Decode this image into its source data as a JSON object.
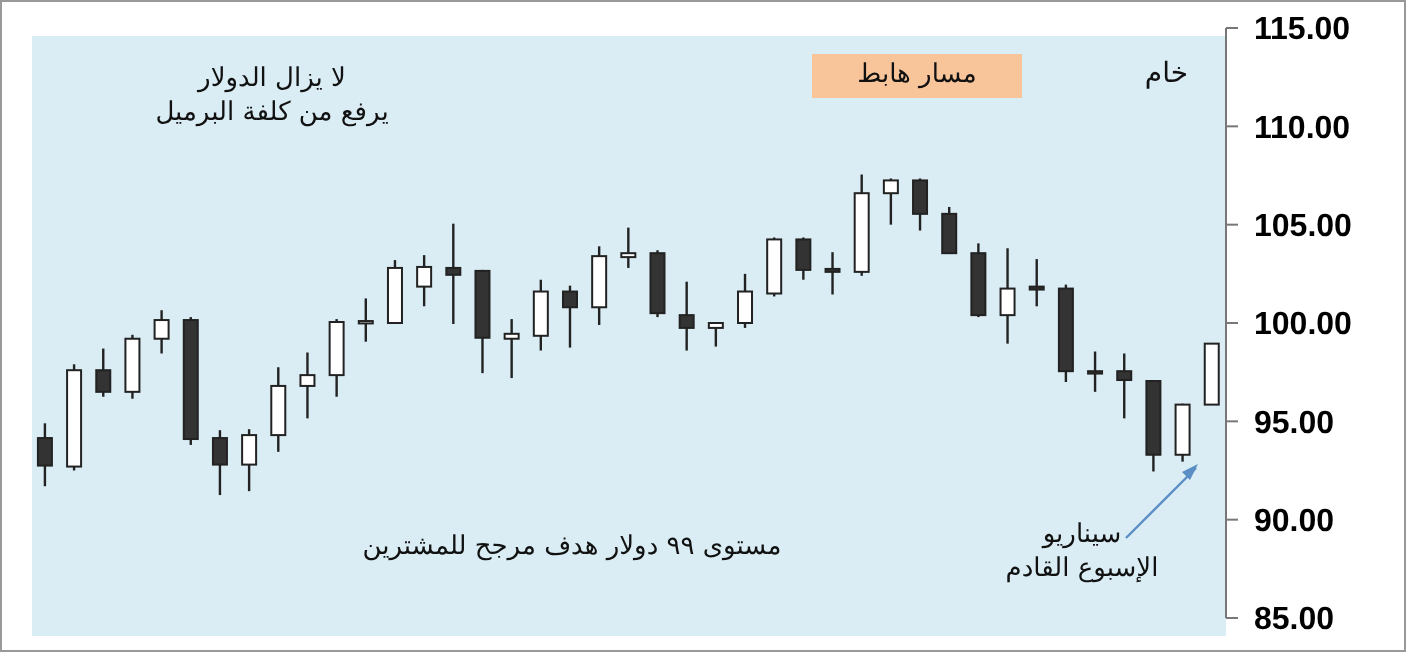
{
  "chart_data": {
    "type": "candlestick",
    "title": "خام",
    "annotations": [
      "مسار هابط",
      "لا يزال الدولار\nيرفع من كلفة البرميل",
      "مستوى ٩٩ دولار هدف مرجح للمشترين",
      "سيناريو\nالإسبوع القادم"
    ],
    "categories": [
      null,
      null,
      null,
      null,
      null,
      null,
      null,
      null,
      null,
      null,
      null,
      null,
      null,
      null,
      null,
      null,
      null,
      null,
      null,
      null,
      null,
      null,
      null,
      null,
      null,
      null,
      null,
      null,
      null,
      null,
      null,
      null,
      null,
      null,
      null,
      null,
      null,
      null,
      null,
      null,
      null
    ],
    "ohlc": [
      [
        94.15,
        94.9,
        91.7,
        92.75
      ],
      [
        92.7,
        97.9,
        92.5,
        97.6
      ],
      [
        97.6,
        98.7,
        96.25,
        96.5
      ],
      [
        96.5,
        99.4,
        96.15,
        99.2
      ],
      [
        99.2,
        100.65,
        98.45,
        100.15
      ],
      [
        100.15,
        100.3,
        93.8,
        94.1
      ],
      [
        94.15,
        94.55,
        91.25,
        92.8
      ],
      [
        92.8,
        94.6,
        91.45,
        94.3
      ],
      [
        94.3,
        97.75,
        93.45,
        96.8
      ],
      [
        96.8,
        98.5,
        95.15,
        97.35
      ],
      [
        97.35,
        100.2,
        96.25,
        100.05
      ],
      [
        100.05,
        101.25,
        99.05,
        100.1
      ],
      [
        100.0,
        103.2,
        99.95,
        102.8
      ],
      [
        101.85,
        103.45,
        100.85,
        102.85
      ],
      [
        102.8,
        105.05,
        99.95,
        102.45
      ],
      [
        102.65,
        102.7,
        97.45,
        99.25
      ],
      [
        99.2,
        100.2,
        97.2,
        99.45
      ],
      [
        99.35,
        102.2,
        98.6,
        101.6
      ],
      [
        101.6,
        101.9,
        98.75,
        100.8
      ],
      [
        100.8,
        103.9,
        99.9,
        103.4
      ],
      [
        103.35,
        104.85,
        102.8,
        103.55
      ],
      [
        103.55,
        103.7,
        100.3,
        100.5
      ],
      [
        100.4,
        102.1,
        98.6,
        99.75
      ],
      [
        99.75,
        100.05,
        98.8,
        100.0
      ],
      [
        100.0,
        102.5,
        99.75,
        101.6
      ],
      [
        101.5,
        104.35,
        101.35,
        104.25
      ],
      [
        104.25,
        104.35,
        102.2,
        102.7
      ],
      [
        102.75,
        103.6,
        101.45,
        102.6
      ],
      [
        102.6,
        107.55,
        102.4,
        106.6
      ],
      [
        106.6,
        107.35,
        105.0,
        107.25
      ],
      [
        107.25,
        107.35,
        104.7,
        105.55
      ],
      [
        105.55,
        105.9,
        103.55,
        103.55
      ],
      [
        103.55,
        104.05,
        100.3,
        100.4
      ],
      [
        100.4,
        103.8,
        98.95,
        101.75
      ],
      [
        101.85,
        103.25,
        100.85,
        101.7
      ],
      [
        101.75,
        101.95,
        97.0,
        97.55
      ],
      [
        97.55,
        98.55,
        96.5,
        97.45
      ],
      [
        97.55,
        98.45,
        95.15,
        97.1
      ],
      [
        97.05,
        97.1,
        92.45,
        93.3
      ],
      [
        93.3,
        95.9,
        92.95,
        95.85
      ],
      [
        95.85,
        98.95,
        95.85,
        98.95
      ]
    ],
    "ylim": [
      85,
      115
    ],
    "yticks": [
      {
        "value": 85,
        "label": "85.00"
      },
      {
        "value": 90,
        "label": "90.00"
      },
      {
        "value": 95,
        "label": "95.00"
      },
      {
        "value": 100,
        "label": "100.00"
      },
      {
        "value": 105,
        "label": "105.00"
      },
      {
        "value": 110,
        "label": "110.00"
      },
      {
        "value": 115,
        "label": "115.00"
      }
    ],
    "tick_labels": "y"
  }
}
